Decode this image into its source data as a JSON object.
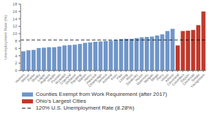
{
  "chart_data": {
    "type": "bar",
    "ylabel": "Unemployment Rate (%)",
    "categories": [
      "Holmes",
      "Mercer",
      "Darke",
      "Shelby",
      "Logan",
      "Auglaize",
      "Hardin",
      "Putnam",
      "Wyandot",
      "Crawford",
      "Defiance",
      "Paulding",
      "Marion",
      "Henry",
      "Hancock",
      "Champaign",
      "Seneca",
      "Ashland",
      "Knox",
      "Pike",
      "Licking",
      "Ross",
      "Sandusky",
      "Huron",
      "Guernsey",
      "Morgan",
      "Meigs",
      "Perry",
      "Vinton",
      "Athens",
      "Cleveland",
      "Columbus",
      "Dayton",
      "Cincinnati",
      "Toledo",
      "Youngstown"
    ],
    "values": [
      5.2,
      5.5,
      5.6,
      6.1,
      6.2,
      6.3,
      6.3,
      6.5,
      6.8,
      6.9,
      7.0,
      7.2,
      7.5,
      7.6,
      7.8,
      7.9,
      8.0,
      8.1,
      8.3,
      8.5,
      8.6,
      8.6,
      8.8,
      9.0,
      9.1,
      9.2,
      9.5,
      9.8,
      10.7,
      11.3,
      6.8,
      10.7,
      10.8,
      11.0,
      12.3,
      16.0
    ],
    "colors": [
      "#7096c8",
      "#7096c8",
      "#7096c8",
      "#7096c8",
      "#7096c8",
      "#7096c8",
      "#7096c8",
      "#7096c8",
      "#7096c8",
      "#7096c8",
      "#7096c8",
      "#7096c8",
      "#7096c8",
      "#7096c8",
      "#7096c8",
      "#7096c8",
      "#7096c8",
      "#7096c8",
      "#7096c8",
      "#7096c8",
      "#7096c8",
      "#7096c8",
      "#7096c8",
      "#7096c8",
      "#7096c8",
      "#7096c8",
      "#7096c8",
      "#7096c8",
      "#7096c8",
      "#7096c8",
      "#c0392b",
      "#c0392b",
      "#c0392b",
      "#c0392b",
      "#c0392b",
      "#c0392b"
    ],
    "ylim": [
      0,
      18
    ],
    "yticks": [
      0,
      2,
      4,
      6,
      8,
      10,
      12,
      14,
      16,
      18
    ],
    "grid": false,
    "legend": "lower left",
    "legend_entries": [
      {
        "label": "Counties Exempt from Work Requirement (after 2017)",
        "color": "#7096c8"
      },
      {
        "label": "Ohio's Largest Cities",
        "color": "#c0392b"
      }
    ],
    "reference_line": {
      "value": 8.28,
      "label": "120% U.S. Unemployment Rate (8.28%)",
      "color": "#000000",
      "line_style": "dashed"
    }
  }
}
